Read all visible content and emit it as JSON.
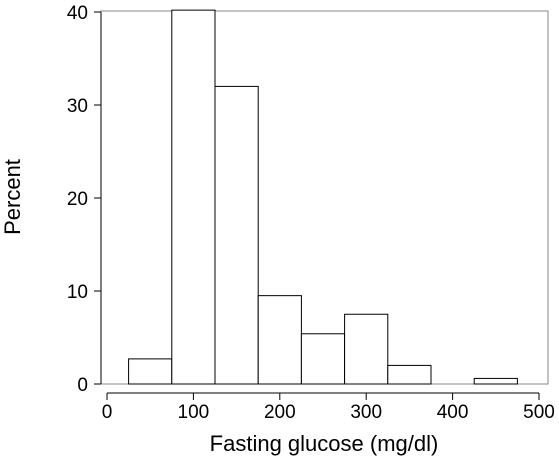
{
  "chart_data": {
    "type": "bar",
    "title": "",
    "xlabel": "Fasting glucose (mg/dl)",
    "ylabel": "Percent",
    "xlim": [
      0,
      500
    ],
    "ylim": [
      0,
      40
    ],
    "xticks": [
      "0",
      "100",
      "200",
      "300",
      "400",
      "500"
    ],
    "yticks": [
      "0",
      "10",
      "20",
      "30",
      "40"
    ],
    "grid": false,
    "legend": "none",
    "bins": [
      {
        "x0": 25,
        "x1": 75,
        "value": 2.7
      },
      {
        "x0": 75,
        "x1": 125,
        "value": 40.2
      },
      {
        "x0": 125,
        "x1": 175,
        "value": 32.0
      },
      {
        "x0": 175,
        "x1": 225,
        "value": 9.5
      },
      {
        "x0": 225,
        "x1": 275,
        "value": 5.4
      },
      {
        "x0": 275,
        "x1": 325,
        "value": 7.5
      },
      {
        "x0": 325,
        "x1": 375,
        "value": 2.0
      },
      {
        "x0": 375,
        "x1": 425,
        "value": 0
      },
      {
        "x0": 425,
        "x1": 475,
        "value": 0.6
      }
    ],
    "colors": {
      "bar_fill": "#ffffff",
      "bar_stroke": "#000000",
      "frame": "#888888"
    }
  }
}
